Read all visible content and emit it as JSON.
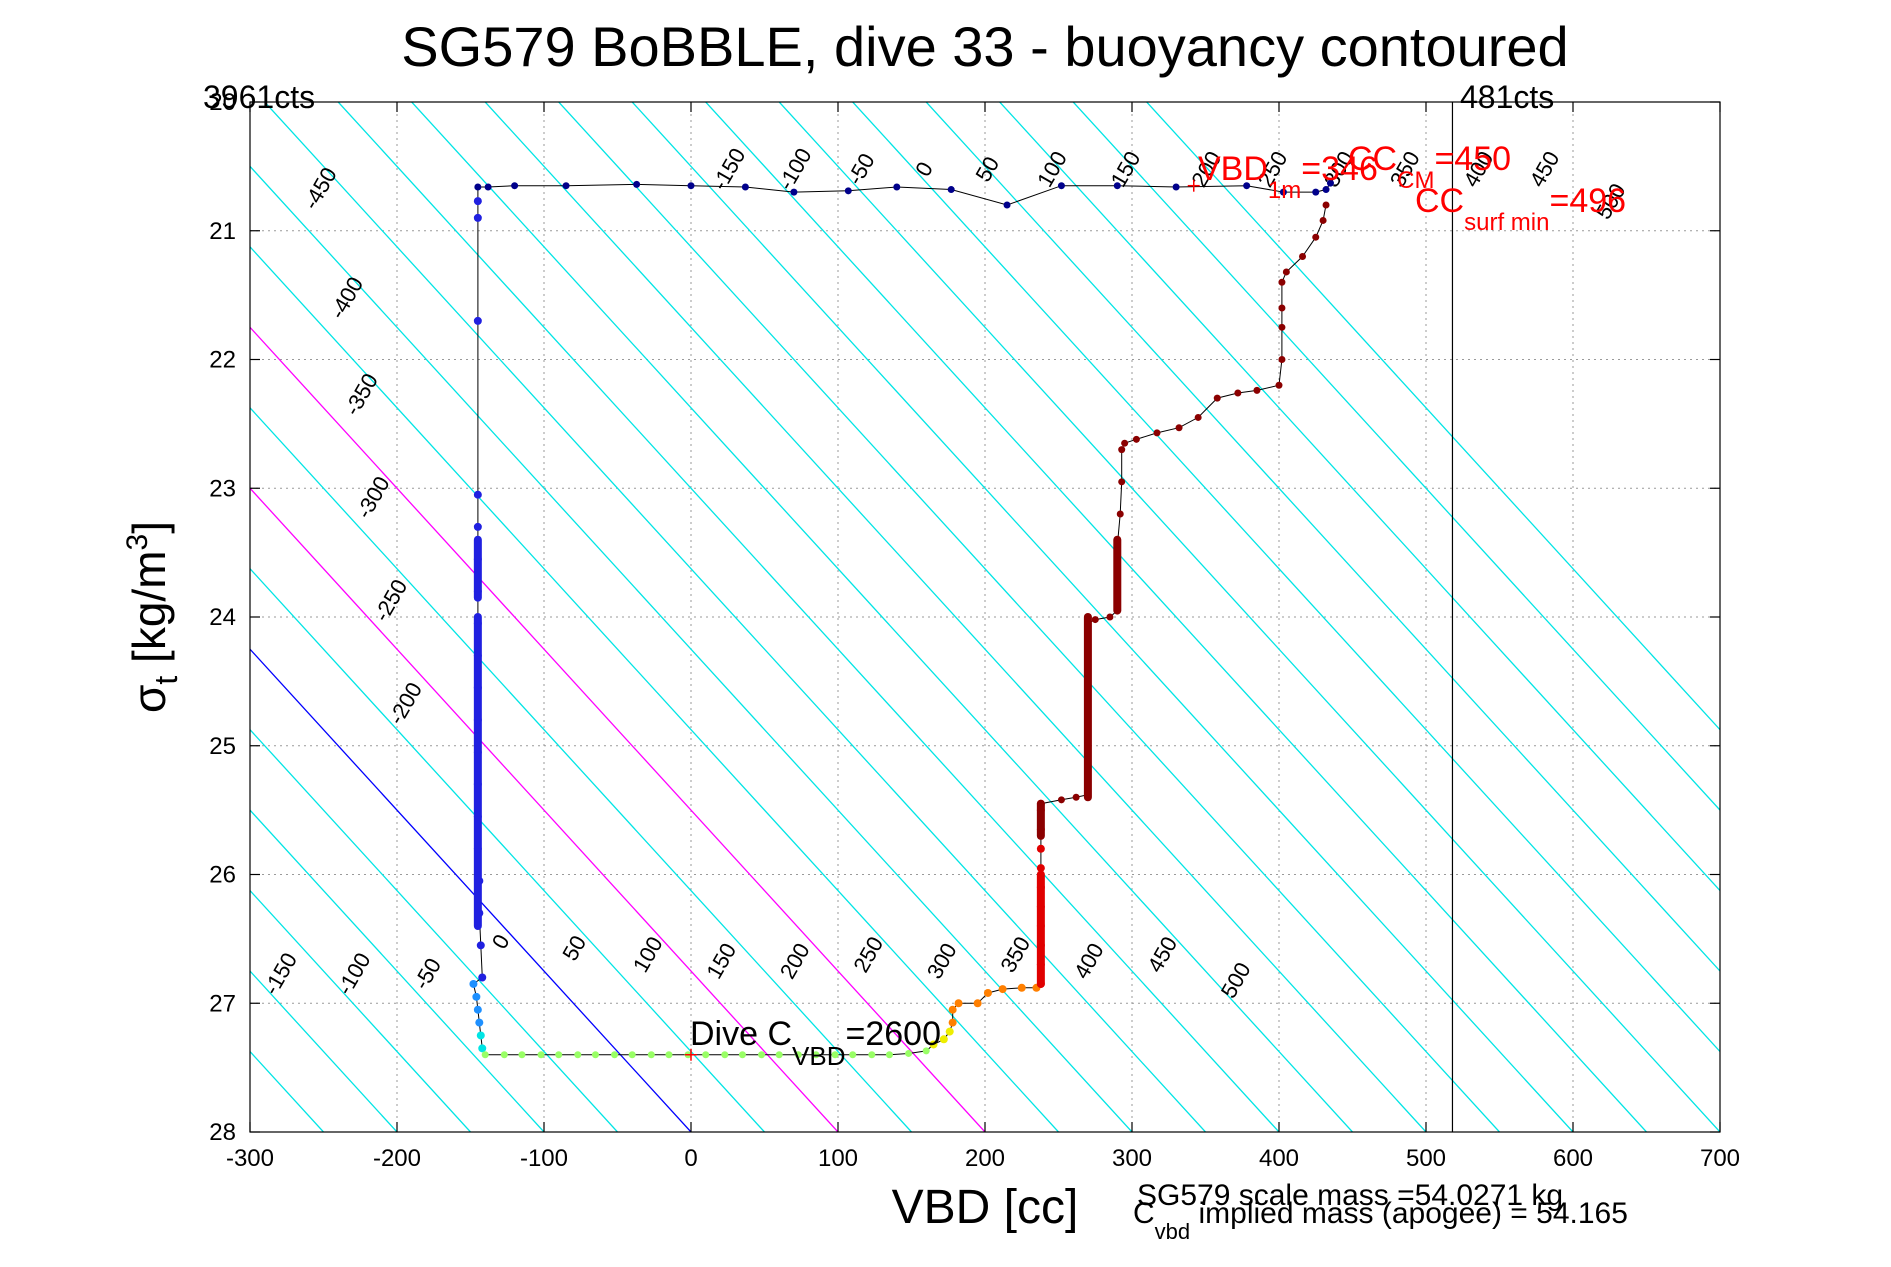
{
  "chart_data": {
    "type": "scatter",
    "title": "SG579 BoBBLE, dive 33 - buoyancy contoured",
    "xlabel": "VBD [cc]",
    "ylabel_main": "σ",
    "ylabel_sub": "t",
    "ylabel_unit": " [kg/m",
    "ylabel_sup": "3",
    "ylabel_close": "]",
    "xlim": [
      -300,
      700
    ],
    "ylim": [
      20,
      28
    ],
    "y_reversed": true,
    "grid": true,
    "x_ticks": [
      "-300",
      "-200",
      "-100",
      "0",
      "100",
      "200",
      "300",
      "400",
      "500",
      "600",
      "700"
    ],
    "y_ticks": [
      "20",
      "21",
      "22",
      "23",
      "24",
      "25",
      "26",
      "27",
      "28"
    ],
    "contour_slope_cc_per_sigma": 80,
    "contours": {
      "levels": [
        -450,
        -400,
        -350,
        -300,
        -250,
        -200,
        -150,
        -100,
        -50,
        0,
        50,
        100,
        150,
        200,
        250,
        300,
        350,
        400,
        450,
        500
      ],
      "zero_level": 0,
      "highlight_levels": [
        100,
        200
      ],
      "colors": {
        "default": "#00e5e5",
        "zero": "#0000ff",
        "highlight": "#ff00ff"
      },
      "top_labels": [
        {
          "text": "-450",
          "x": -248,
          "y": 20.7
        },
        {
          "text": "-400",
          "x": -230,
          "y": 21.55
        },
        {
          "text": "-350",
          "x": -220,
          "y": 22.3
        },
        {
          "text": "-300",
          "x": -212,
          "y": 23.1
        },
        {
          "text": "-250",
          "x": -200,
          "y": 23.9
        },
        {
          "text": "-200",
          "x": -190,
          "y": 24.7
        },
        {
          "text": "-150",
          "x": 30,
          "y": 20.55
        },
        {
          "text": "-100",
          "x": 75,
          "y": 20.55
        },
        {
          "text": "-50",
          "x": 120,
          "y": 20.55
        },
        {
          "text": "0",
          "x": 163,
          "y": 20.55
        },
        {
          "text": "50",
          "x": 206,
          "y": 20.55
        },
        {
          "text": "100",
          "x": 250,
          "y": 20.55
        },
        {
          "text": "150",
          "x": 300,
          "y": 20.55
        },
        {
          "text": "200",
          "x": 355,
          "y": 20.55
        },
        {
          "text": "250",
          "x": 400,
          "y": 20.55
        },
        {
          "text": "300",
          "x": 445,
          "y": 20.55
        },
        {
          "text": "350",
          "x": 490,
          "y": 20.55
        },
        {
          "text": "400",
          "x": 540,
          "y": 20.55
        },
        {
          "text": "450",
          "x": 585,
          "y": 20.55
        },
        {
          "text": "500",
          "x": 630,
          "y": 20.8
        }
      ],
      "bottom_labels": [
        {
          "text": "-150",
          "x": -275,
          "y": 26.8
        },
        {
          "text": "-100",
          "x": -225,
          "y": 26.8
        },
        {
          "text": "-50",
          "x": -175,
          "y": 26.8
        },
        {
          "text": "0",
          "x": -125,
          "y": 26.55
        },
        {
          "text": "50",
          "x": -75,
          "y": 26.6
        },
        {
          "text": "100",
          "x": -25,
          "y": 26.65
        },
        {
          "text": "150",
          "x": 25,
          "y": 26.7
        },
        {
          "text": "200",
          "x": 75,
          "y": 26.7
        },
        {
          "text": "250",
          "x": 125,
          "y": 26.65
        },
        {
          "text": "300",
          "x": 175,
          "y": 26.7
        },
        {
          "text": "350",
          "x": 225,
          "y": 26.65
        },
        {
          "text": "400",
          "x": 275,
          "y": 26.7
        },
        {
          "text": "450",
          "x": 325,
          "y": 26.65
        },
        {
          "text": "500",
          "x": 375,
          "y": 26.85
        }
      ]
    },
    "vertical_line_x": 518,
    "corner_labels": {
      "left": "3961cts",
      "right": "481cts"
    },
    "annotations": {
      "dive_c_vbd": {
        "main": "Dive C",
        "sub": "VBD",
        "value": "=2600",
        "marker_x": 0,
        "marker_y": 27.4
      },
      "vbd_1m": {
        "main": "VBD",
        "sub": "1m",
        "value": "=346",
        "marker_x": 342,
        "marker_y": 20.65
      },
      "cc_cm": {
        "main": "CC",
        "sub": "CM",
        "value": "=450"
      },
      "cc_surf_min": {
        "main": "CC",
        "sub": "surf min",
        "value": "=496"
      },
      "scale_mass": "SG579 scale mass =54.0271 kg",
      "implied_mass_main": "C",
      "implied_mass_sub": "vbd",
      "implied_mass_rest": " implied mass (apogee) = 54.165"
    },
    "series": [
      {
        "color": "#00008b",
        "points": [
          [
            -145,
            20.66
          ],
          [
            -138,
            20.66
          ],
          [
            -120,
            20.65
          ],
          [
            -85,
            20.65
          ],
          [
            -37,
            20.64
          ],
          [
            0,
            20.65
          ],
          [
            37,
            20.66
          ],
          [
            70,
            20.7
          ],
          [
            107,
            20.69
          ],
          [
            140,
            20.66
          ],
          [
            177,
            20.68
          ],
          [
            215,
            20.8
          ],
          [
            252,
            20.65
          ],
          [
            290,
            20.65
          ],
          [
            330,
            20.66
          ],
          [
            378,
            20.65
          ],
          [
            403,
            20.7
          ],
          [
            425,
            20.7
          ],
          [
            432,
            20.68
          ],
          [
            435,
            20.63
          ]
        ],
        "dot_radius": 3.5
      },
      {
        "color": "#2020e0",
        "points": [
          [
            -145,
            20.77
          ],
          [
            -145,
            20.9
          ],
          [
            -145,
            21.7
          ],
          [
            -145,
            23.05
          ],
          [
            -145,
            23.3
          ],
          [
            -145,
            23.55
          ],
          [
            -145,
            23.8
          ],
          [
            -145,
            24.05
          ],
          [
            -145,
            24.3
          ],
          [
            -145,
            24.55
          ],
          [
            -145,
            24.8
          ],
          [
            -145,
            25.05
          ],
          [
            -145,
            25.3
          ],
          [
            -145,
            25.55
          ],
          [
            -145,
            25.8
          ],
          [
            -144,
            26.05
          ],
          [
            -144,
            26.3
          ],
          [
            -143,
            26.55
          ],
          [
            -142,
            26.8
          ]
        ],
        "dot_radius": 4,
        "thick_segments": [
          [
            -145,
            24.0,
            -145,
            26.4
          ],
          [
            -145,
            23.4,
            -145,
            23.85
          ]
        ]
      },
      {
        "color": "#1e90ff",
        "points": [
          [
            -148,
            26.85
          ],
          [
            -146,
            26.95
          ],
          [
            -145,
            27.05
          ],
          [
            -144,
            27.15
          ]
        ],
        "dot_radius": 4
      },
      {
        "color": "#00e5e5",
        "points": [
          [
            -143,
            27.25
          ],
          [
            -142,
            27.35
          ]
        ],
        "dot_radius": 4
      },
      {
        "color": "#99ff66",
        "points": [
          [
            -140,
            27.4
          ],
          [
            -127,
            27.4
          ],
          [
            -115,
            27.4
          ],
          [
            -102,
            27.4
          ],
          [
            -90,
            27.4
          ],
          [
            -77,
            27.4
          ],
          [
            -65,
            27.4
          ],
          [
            -52,
            27.4
          ],
          [
            -40,
            27.4
          ],
          [
            -27,
            27.4
          ],
          [
            -15,
            27.4
          ],
          [
            -2,
            27.4
          ],
          [
            10,
            27.4
          ],
          [
            23,
            27.4
          ],
          [
            35,
            27.4
          ],
          [
            48,
            27.4
          ],
          [
            60,
            27.4
          ],
          [
            73,
            27.4
          ],
          [
            85,
            27.4
          ],
          [
            98,
            27.4
          ],
          [
            110,
            27.4
          ],
          [
            123,
            27.4
          ],
          [
            135,
            27.4
          ],
          [
            148,
            27.39
          ],
          [
            160,
            27.37
          ]
        ],
        "dot_radius": 3.5
      },
      {
        "color": "#eeee00",
        "points": [
          [
            165,
            27.32
          ],
          [
            172,
            27.28
          ],
          [
            176,
            27.22
          ]
        ],
        "dot_radius": 4
      },
      {
        "color": "#ff7f00",
        "points": [
          [
            178,
            27.15
          ],
          [
            178,
            27.05
          ],
          [
            182,
            27.0
          ],
          [
            195,
            27.0
          ],
          [
            202,
            26.92
          ],
          [
            212,
            26.89
          ],
          [
            225,
            26.88
          ],
          [
            235,
            26.88
          ]
        ],
        "dot_radius": 4
      },
      {
        "color": "#e00000",
        "points": [
          [
            238,
            26.85
          ],
          [
            238,
            26.7
          ],
          [
            238,
            26.55
          ],
          [
            238,
            26.4
          ],
          [
            238,
            26.25
          ],
          [
            238,
            26.1
          ],
          [
            238,
            25.95
          ],
          [
            238,
            25.8
          ],
          [
            238,
            25.65
          ],
          [
            238,
            25.5
          ],
          [
            238,
            25.45
          ]
        ],
        "dot_radius": 4,
        "thick_segments": [
          [
            238,
            26.0,
            238,
            26.85
          ]
        ]
      },
      {
        "color": "#8b0000",
        "points": [
          [
            252,
            25.42
          ],
          [
            262,
            25.4
          ],
          [
            270,
            25.38
          ],
          [
            270,
            25.1
          ],
          [
            270,
            24.8
          ],
          [
            270,
            24.5
          ],
          [
            270,
            24.2
          ],
          [
            270,
            24.05
          ],
          [
            275,
            24.02
          ],
          [
            285,
            24.0
          ],
          [
            290,
            23.95
          ],
          [
            290,
            23.65
          ],
          [
            290,
            23.45
          ],
          [
            292,
            23.2
          ],
          [
            293,
            22.95
          ],
          [
            293,
            22.7
          ],
          [
            295,
            22.65
          ],
          [
            303,
            22.62
          ],
          [
            317,
            22.57
          ],
          [
            332,
            22.53
          ],
          [
            345,
            22.45
          ],
          [
            358,
            22.3
          ],
          [
            372,
            22.26
          ],
          [
            385,
            22.24
          ],
          [
            400,
            22.2
          ],
          [
            402,
            22.0
          ],
          [
            402,
            21.75
          ],
          [
            402,
            21.6
          ],
          [
            402,
            21.4
          ],
          [
            405,
            21.32
          ],
          [
            416,
            21.2
          ],
          [
            425,
            21.05
          ],
          [
            430,
            20.92
          ],
          [
            432,
            20.8
          ]
        ],
        "dot_radius": 3.5,
        "thick_segments": [
          [
            270,
            24.0,
            270,
            25.4
          ],
          [
            290,
            23.4,
            290,
            23.95
          ],
          [
            238,
            25.45,
            238,
            25.7
          ]
        ]
      }
    ]
  }
}
